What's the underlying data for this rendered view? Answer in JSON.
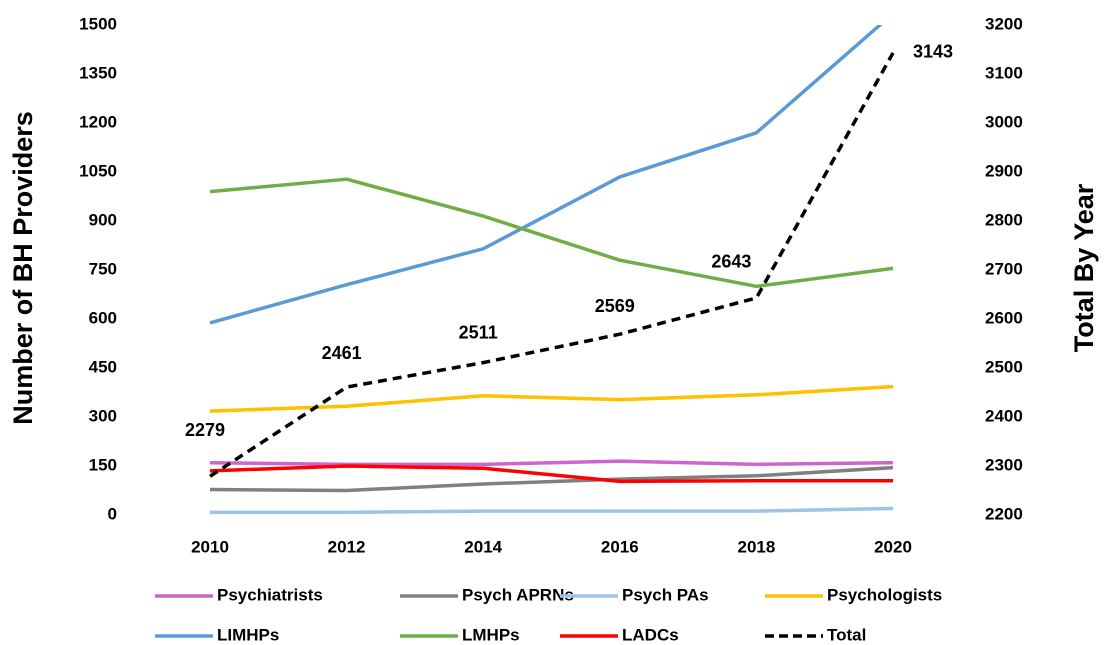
{
  "chart_data": {
    "type": "line",
    "y_label": "Number of BH Providers",
    "y2_label": "Total By Year",
    "categories": [
      "2010",
      "2012",
      "2014",
      "2016",
      "2018",
      "2020"
    ],
    "ylim": [
      0,
      1500
    ],
    "yticks": [
      0,
      150,
      300,
      450,
      600,
      750,
      900,
      1050,
      1200,
      1350,
      1500
    ],
    "y2lim": [
      2200,
      3200
    ],
    "y2ticks": [
      2200,
      2300,
      2400,
      2500,
      2600,
      2700,
      2800,
      2900,
      3000,
      3100,
      3200
    ],
    "legend": "bottom",
    "series": [
      {
        "name": "Psychiatrists",
        "color": "#cc66cc",
        "values": [
          160,
          155,
          155,
          165,
          155,
          160
        ]
      },
      {
        "name": "Psych APRNs",
        "color": "#808080",
        "values": [
          78,
          75,
          95,
          110,
          120,
          145
        ]
      },
      {
        "name": "Psych PAs",
        "color": "#9dc3e6",
        "values": [
          8,
          8,
          12,
          12,
          12,
          20
        ]
      },
      {
        "name": "Psychologists",
        "color": "#ffc000",
        "values": [
          318,
          333,
          365,
          353,
          368,
          393
        ]
      },
      {
        "name": "LIMHPs",
        "color": "#5b9bd5",
        "values": [
          588,
          705,
          815,
          1035,
          1170,
          1535
        ]
      },
      {
        "name": "LMHPs",
        "color": "#70ad47",
        "values": [
          990,
          1028,
          915,
          780,
          700,
          755
        ]
      },
      {
        "name": "LADCs",
        "color": "#ff0000",
        "values": [
          135,
          150,
          143,
          103,
          105,
          105
        ]
      },
      {
        "name": "Total",
        "color": "#000000",
        "dashed": true,
        "axis": "y2",
        "data_labels": true,
        "values": [
          2279,
          2461,
          2511,
          2569,
          2643,
          3143
        ]
      }
    ]
  }
}
